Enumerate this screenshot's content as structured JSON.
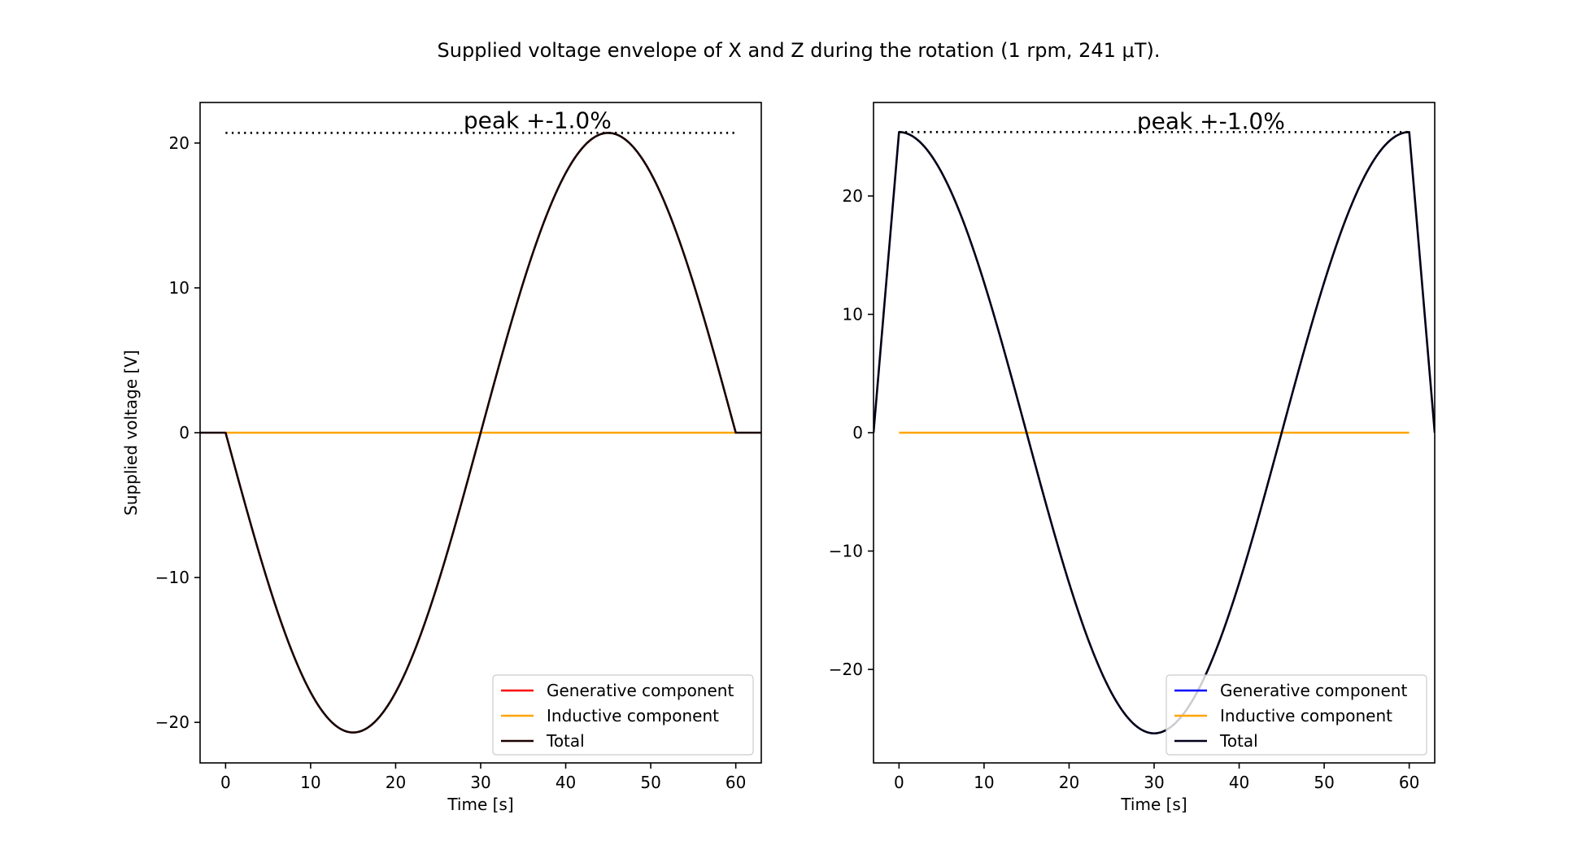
{
  "figure": {
    "title": "Supplied voltage envelope of X and Z during the rotation (1 rpm, 241 μT)."
  },
  "chart_data": [
    {
      "type": "line",
      "title": "",
      "xlabel": "Time [s]",
      "ylabel": "Supplied voltage [V]",
      "xlim": [
        -3,
        63
      ],
      "ylim": [
        -22.8,
        22.8
      ],
      "xticks": [
        0,
        10,
        20,
        30,
        40,
        50,
        60
      ],
      "yticks": [
        -20,
        -10,
        0,
        10,
        20
      ],
      "grid": false,
      "legend_position": "lower right",
      "annotation": {
        "text": "peak +-1.0%",
        "x": 38.5,
        "y": 21.7
      },
      "peak_line": {
        "y": 20.7,
        "x_start": 0,
        "x_end": 60,
        "style": "dotted",
        "color": "#000000"
      },
      "series": [
        {
          "name": "Generative component",
          "color": "#ff0000",
          "function": "-20.7*sin(2*pi*t/60)",
          "t_range": [
            0,
            60
          ],
          "legend_only": true
        },
        {
          "name": "Inductive component",
          "color": "#ffa500",
          "x": [
            0,
            60
          ],
          "y": [
            0,
            0
          ]
        },
        {
          "name": "Total",
          "color": "#1a0000",
          "function": "-20.7*sin(2*pi*t/60)",
          "t_range": [
            0,
            60
          ],
          "extend_zero": [
            -3,
            63
          ]
        }
      ]
    },
    {
      "type": "line",
      "title": "",
      "xlabel": "Time [s]",
      "ylabel": "",
      "xlim": [
        -3,
        63
      ],
      "ylim": [
        -27.9,
        27.9
      ],
      "xticks": [
        0,
        10,
        20,
        30,
        40,
        50,
        60
      ],
      "yticks": [
        -20,
        -10,
        0,
        10,
        20
      ],
      "grid": false,
      "legend_position": "lower right",
      "annotation": {
        "text": "peak +-1.0%",
        "x": 38.5,
        "y": 26.5
      },
      "peak_line": {
        "y": 25.4,
        "x_start": 0,
        "x_end": 60,
        "style": "dotted",
        "color": "#000000"
      },
      "series": [
        {
          "name": "Generative component",
          "color": "#0000ff",
          "function": "25.4*cos(2*pi*t/60)",
          "t_range": [
            0,
            60
          ],
          "legend_only": true
        },
        {
          "name": "Inductive component",
          "color": "#ffa500",
          "x": [
            0,
            60
          ],
          "y": [
            0,
            0
          ]
        },
        {
          "name": "Total",
          "color": "#00001a",
          "function": "25.4*cos(2*pi*t/60)",
          "t_range": [
            0,
            60
          ],
          "extend_zero": [
            -3,
            63
          ]
        }
      ]
    }
  ]
}
